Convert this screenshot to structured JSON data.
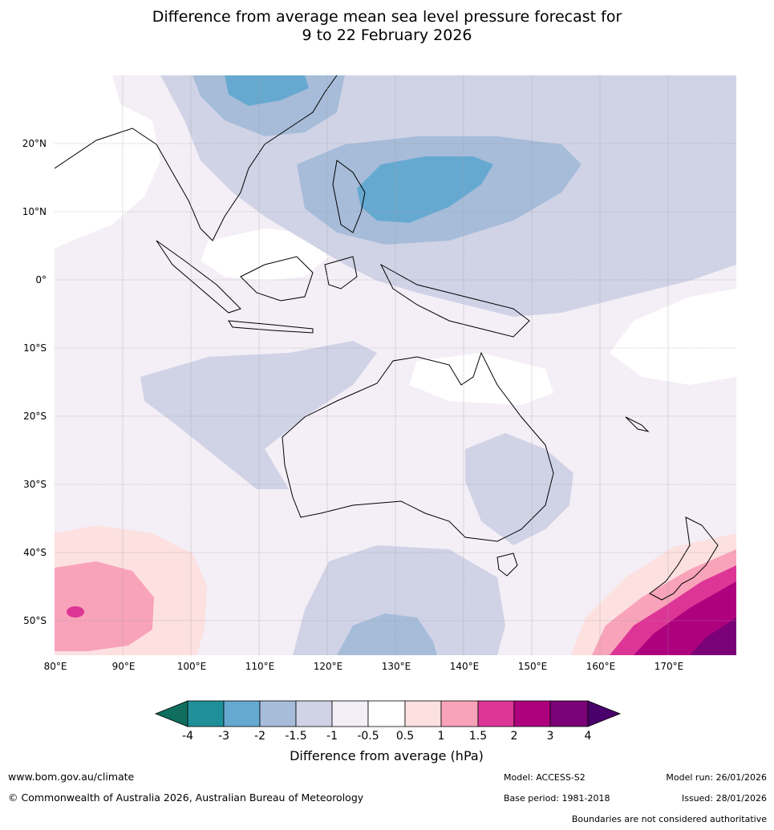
{
  "title": {
    "line1": "Difference from average mean sea level pressure forecast for",
    "line2": "9 to 22 February 2026"
  },
  "map": {
    "lat_labels": [
      "20°N",
      "10°N",
      "0°",
      "10°S",
      "20°S",
      "30°S",
      "40°S",
      "50°S"
    ],
    "lon_labels": [
      "80°E",
      "90°E",
      "100°E",
      "110°E",
      "120°E",
      "130°E",
      "140°E",
      "150°E",
      "160°E",
      "170°E"
    ]
  },
  "legend": {
    "tick_labels": [
      "-4",
      "-3",
      "-2",
      "-1.5",
      "-1",
      "-0.5",
      "0.5",
      "1",
      "1.5",
      "2",
      "3",
      "4"
    ],
    "colors": [
      "#0f6e5e",
      "#1f8f99",
      "#66a9d0",
      "#a6bcd9",
      "#d0d3e6",
      "#f4eef6",
      "#ffffff",
      "#fde0e0",
      "#f8a3ba",
      "#dd3595",
      "#ae017e",
      "#7a0177",
      "#49006a"
    ],
    "label": "Difference from average (hPa)"
  },
  "footer": {
    "website": "www.bom.gov.au/climate",
    "copyright": "© Commonwealth of Australia 2026, Australian Bureau of Meteorology",
    "model": "Model: ACCESS-S2",
    "base_period": "Base period: 1981-2018",
    "model_run": "Model run: 26/01/2026",
    "issued": "Issued: 28/01/2026",
    "disclaimer": "Boundaries are not considered authoritative"
  }
}
